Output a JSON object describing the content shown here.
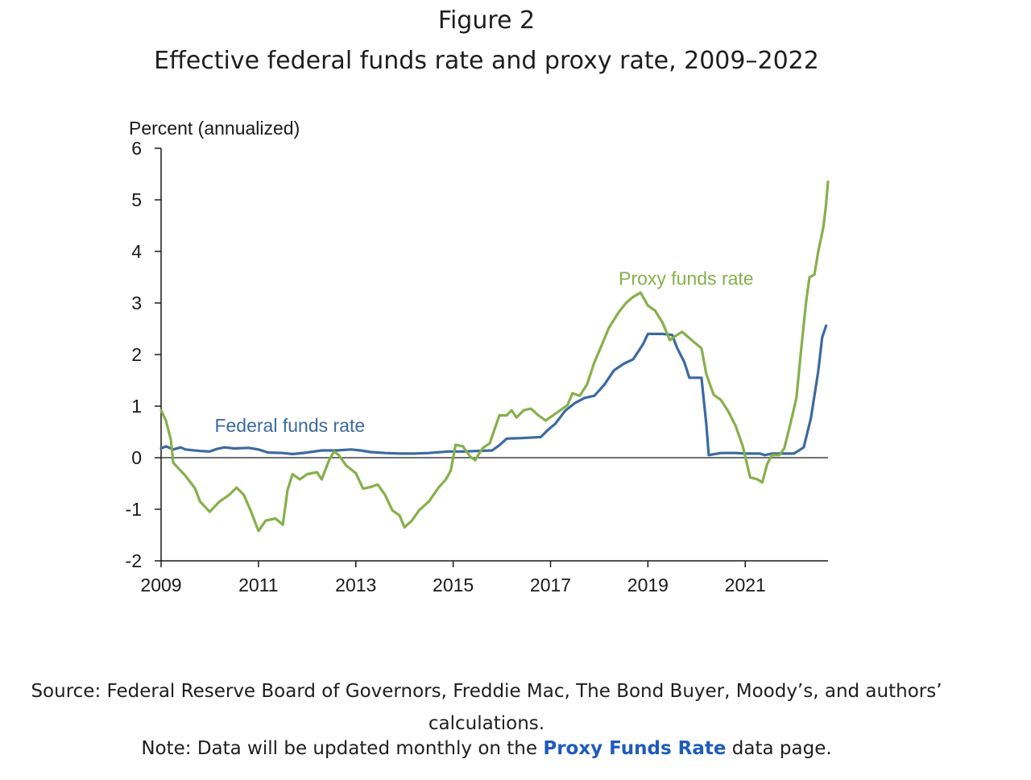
{
  "figure": {
    "label": "Figure 2",
    "title": "Effective federal funds rate and proxy rate, 2009–2022"
  },
  "source": {
    "text": "Source: Federal Reserve Board of Governors, Freddie Mac, The Bond Buyer, Moody’s, and authors’ calculations."
  },
  "note": {
    "prefix": "Note: Data will be updated monthly on the ",
    "link_label": "Proxy Funds Rate",
    "suffix": " data page."
  },
  "colors": {
    "fed": "#3b6aa0",
    "proxy": "#86b04a",
    "axis": "#1a1a1a",
    "link": "#1f5bbd"
  },
  "chart_data": {
    "type": "line",
    "title": "Effective federal funds rate and proxy rate, 2009–2022",
    "ylabel": "Percent (annualized)",
    "xlabel": "",
    "xlim": [
      2009,
      2022.7
    ],
    "ylim": [
      -2,
      6
    ],
    "yticks": [
      "-2",
      "-1",
      "0",
      "1",
      "2",
      "3",
      "4",
      "5",
      "6"
    ],
    "xticks": [
      "2009",
      "2011",
      "2013",
      "2015",
      "2017",
      "2019",
      "2021"
    ],
    "zero_line": true,
    "series": [
      {
        "name": "Federal funds rate",
        "color": "#3b6aa0",
        "label_anchor": [
          2010.1,
          0.5
        ],
        "points": [
          [
            2009.0,
            0.18
          ],
          [
            2009.1,
            0.22
          ],
          [
            2009.25,
            0.16
          ],
          [
            2009.4,
            0.2
          ],
          [
            2009.5,
            0.16
          ],
          [
            2009.8,
            0.13
          ],
          [
            2010.0,
            0.12
          ],
          [
            2010.15,
            0.17
          ],
          [
            2010.3,
            0.2
          ],
          [
            2010.5,
            0.18
          ],
          [
            2010.8,
            0.19
          ],
          [
            2011.0,
            0.16
          ],
          [
            2011.2,
            0.1
          ],
          [
            2011.5,
            0.09
          ],
          [
            2011.7,
            0.07
          ],
          [
            2012.0,
            0.1
          ],
          [
            2012.3,
            0.14
          ],
          [
            2012.6,
            0.14
          ],
          [
            2012.9,
            0.16
          ],
          [
            2013.1,
            0.14
          ],
          [
            2013.3,
            0.11
          ],
          [
            2013.6,
            0.09
          ],
          [
            2013.9,
            0.08
          ],
          [
            2014.2,
            0.08
          ],
          [
            2014.5,
            0.09
          ],
          [
            2014.9,
            0.12
          ],
          [
            2015.2,
            0.12
          ],
          [
            2015.5,
            0.13
          ],
          [
            2015.8,
            0.14
          ],
          [
            2015.95,
            0.24
          ],
          [
            2016.1,
            0.37
          ],
          [
            2016.4,
            0.38
          ],
          [
            2016.8,
            0.4
          ],
          [
            2016.95,
            0.54
          ],
          [
            2017.1,
            0.66
          ],
          [
            2017.3,
            0.91
          ],
          [
            2017.5,
            1.06
          ],
          [
            2017.7,
            1.16
          ],
          [
            2017.9,
            1.2
          ],
          [
            2018.1,
            1.41
          ],
          [
            2018.3,
            1.69
          ],
          [
            2018.5,
            1.82
          ],
          [
            2018.7,
            1.91
          ],
          [
            2018.9,
            2.2
          ],
          [
            2019.0,
            2.4
          ],
          [
            2019.3,
            2.4
          ],
          [
            2019.5,
            2.38
          ],
          [
            2019.6,
            2.13
          ],
          [
            2019.75,
            1.85
          ],
          [
            2019.85,
            1.55
          ],
          [
            2020.1,
            1.55
          ],
          [
            2020.2,
            0.65
          ],
          [
            2020.25,
            0.05
          ],
          [
            2020.5,
            0.09
          ],
          [
            2020.8,
            0.09
          ],
          [
            2021.0,
            0.08
          ],
          [
            2021.3,
            0.08
          ],
          [
            2021.4,
            0.05
          ],
          [
            2021.55,
            0.08
          ],
          [
            2021.8,
            0.08
          ],
          [
            2022.0,
            0.08
          ],
          [
            2022.2,
            0.2
          ],
          [
            2022.35,
            0.77
          ],
          [
            2022.5,
            1.68
          ],
          [
            2022.58,
            2.33
          ],
          [
            2022.66,
            2.56
          ]
        ]
      },
      {
        "name": "Proxy funds rate",
        "color": "#86b04a",
        "label_anchor": [
          2018.4,
          3.35
        ],
        "points": [
          [
            2009.0,
            0.92
          ],
          [
            2009.1,
            0.72
          ],
          [
            2009.2,
            0.35
          ],
          [
            2009.25,
            -0.1
          ],
          [
            2009.35,
            -0.2
          ],
          [
            2009.5,
            -0.35
          ],
          [
            2009.7,
            -0.6
          ],
          [
            2009.8,
            -0.85
          ],
          [
            2010.0,
            -1.05
          ],
          [
            2010.2,
            -0.85
          ],
          [
            2010.4,
            -0.72
          ],
          [
            2010.55,
            -0.58
          ],
          [
            2010.7,
            -0.72
          ],
          [
            2010.85,
            -1.05
          ],
          [
            2011.0,
            -1.42
          ],
          [
            2011.15,
            -1.22
          ],
          [
            2011.35,
            -1.18
          ],
          [
            2011.5,
            -1.3
          ],
          [
            2011.6,
            -0.62
          ],
          [
            2011.7,
            -0.32
          ],
          [
            2011.85,
            -0.42
          ],
          [
            2012.0,
            -0.32
          ],
          [
            2012.2,
            -0.28
          ],
          [
            2012.3,
            -0.42
          ],
          [
            2012.45,
            -0.05
          ],
          [
            2012.55,
            0.12
          ],
          [
            2012.65,
            0.05
          ],
          [
            2012.8,
            -0.15
          ],
          [
            2013.0,
            -0.3
          ],
          [
            2013.15,
            -0.6
          ],
          [
            2013.3,
            -0.57
          ],
          [
            2013.45,
            -0.52
          ],
          [
            2013.6,
            -0.72
          ],
          [
            2013.75,
            -1.02
          ],
          [
            2013.9,
            -1.12
          ],
          [
            2014.0,
            -1.35
          ],
          [
            2014.15,
            -1.22
          ],
          [
            2014.3,
            -1.02
          ],
          [
            2014.5,
            -0.85
          ],
          [
            2014.7,
            -0.58
          ],
          [
            2014.85,
            -0.42
          ],
          [
            2014.95,
            -0.25
          ],
          [
            2015.05,
            0.25
          ],
          [
            2015.2,
            0.22
          ],
          [
            2015.35,
            0.02
          ],
          [
            2015.45,
            -0.05
          ],
          [
            2015.6,
            0.18
          ],
          [
            2015.75,
            0.28
          ],
          [
            2015.95,
            0.82
          ],
          [
            2016.1,
            0.82
          ],
          [
            2016.2,
            0.92
          ],
          [
            2016.3,
            0.78
          ],
          [
            2016.45,
            0.92
          ],
          [
            2016.6,
            0.95
          ],
          [
            2016.75,
            0.82
          ],
          [
            2016.9,
            0.72
          ],
          [
            2017.05,
            0.82
          ],
          [
            2017.2,
            0.92
          ],
          [
            2017.35,
            1.02
          ],
          [
            2017.45,
            1.25
          ],
          [
            2017.6,
            1.2
          ],
          [
            2017.75,
            1.42
          ],
          [
            2017.9,
            1.85
          ],
          [
            2018.05,
            2.18
          ],
          [
            2018.2,
            2.52
          ],
          [
            2018.4,
            2.82
          ],
          [
            2018.55,
            3.0
          ],
          [
            2018.7,
            3.12
          ],
          [
            2018.85,
            3.2
          ],
          [
            2019.0,
            2.95
          ],
          [
            2019.15,
            2.85
          ],
          [
            2019.3,
            2.62
          ],
          [
            2019.45,
            2.28
          ],
          [
            2019.55,
            2.35
          ],
          [
            2019.7,
            2.44
          ],
          [
            2019.85,
            2.32
          ],
          [
            2020.0,
            2.2
          ],
          [
            2020.1,
            2.12
          ],
          [
            2020.2,
            1.62
          ],
          [
            2020.35,
            1.22
          ],
          [
            2020.5,
            1.12
          ],
          [
            2020.65,
            0.9
          ],
          [
            2020.8,
            0.62
          ],
          [
            2020.95,
            0.22
          ],
          [
            2021.1,
            -0.38
          ],
          [
            2021.25,
            -0.42
          ],
          [
            2021.35,
            -0.48
          ],
          [
            2021.45,
            -0.12
          ],
          [
            2021.55,
            0.05
          ],
          [
            2021.7,
            0.05
          ],
          [
            2021.8,
            0.18
          ],
          [
            2021.9,
            0.55
          ],
          [
            2022.05,
            1.15
          ],
          [
            2022.15,
            2.12
          ],
          [
            2022.25,
            3.02
          ],
          [
            2022.32,
            3.5
          ],
          [
            2022.42,
            3.55
          ],
          [
            2022.5,
            4.0
          ],
          [
            2022.6,
            4.45
          ],
          [
            2022.65,
            4.82
          ],
          [
            2022.7,
            5.35
          ]
        ]
      }
    ]
  }
}
